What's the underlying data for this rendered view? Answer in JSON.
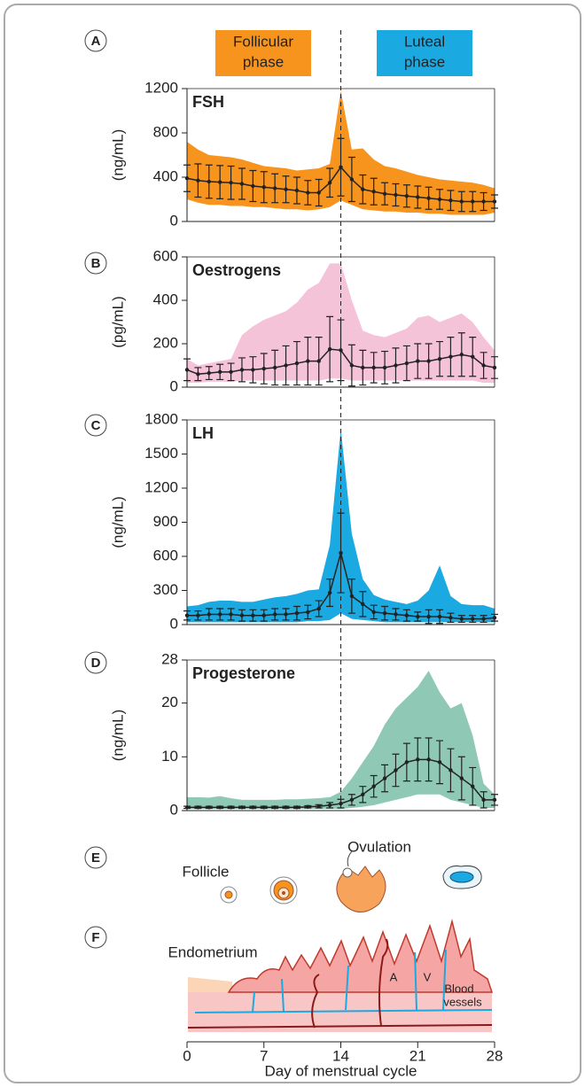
{
  "phases": [
    {
      "lines": [
        "Follicular",
        "phase"
      ],
      "color": "#f7941d"
    },
    {
      "lines": [
        "Luteal",
        "phase"
      ],
      "color": "#1ba9e1"
    }
  ],
  "ovulation_day": 14,
  "chart_data": [
    {
      "type": "line",
      "panel": "A",
      "title": "FSH",
      "y_label": "(ng/mL)",
      "color": "#f7941d",
      "xlim": [
        0,
        28
      ],
      "ylim": [
        0,
        1200
      ],
      "yticks": [
        0,
        400,
        800,
        1200
      ],
      "x": [
        0,
        1,
        2,
        3,
        4,
        5,
        6,
        7,
        8,
        9,
        10,
        11,
        12,
        13,
        14,
        15,
        16,
        17,
        18,
        19,
        20,
        21,
        22,
        23,
        24,
        25,
        26,
        27,
        28
      ],
      "values": [
        390,
        370,
        360,
        355,
        350,
        340,
        320,
        310,
        300,
        290,
        280,
        260,
        260,
        350,
        490,
        380,
        290,
        270,
        250,
        240,
        230,
        220,
        210,
        200,
        190,
        180,
        180,
        180,
        180
      ],
      "errors": [
        120,
        150,
        150,
        150,
        150,
        140,
        140,
        140,
        130,
        120,
        120,
        110,
        120,
        130,
        260,
        200,
        130,
        120,
        100,
        100,
        100,
        100,
        100,
        90,
        90,
        90,
        90,
        80,
        60
      ],
      "range_low": [
        200,
        170,
        150,
        150,
        140,
        140,
        130,
        130,
        120,
        110,
        110,
        100,
        110,
        130,
        190,
        150,
        110,
        100,
        90,
        90,
        80,
        80,
        70,
        70,
        60,
        60,
        60,
        60,
        80
      ],
      "range_high": [
        720,
        650,
        600,
        590,
        580,
        560,
        530,
        500,
        490,
        480,
        460,
        470,
        480,
        520,
        1180,
        650,
        660,
        560,
        500,
        480,
        450,
        420,
        400,
        380,
        370,
        360,
        350,
        330,
        300
      ]
    },
    {
      "type": "line",
      "panel": "B",
      "title": "Oestrogens",
      "y_label": "(pg/mL)",
      "color": "#f5c3d8",
      "xlim": [
        0,
        28
      ],
      "ylim": [
        0,
        600
      ],
      "yticks": [
        0,
        200,
        400,
        600
      ],
      "x": [
        0,
        1,
        2,
        3,
        4,
        5,
        6,
        7,
        8,
        9,
        10,
        11,
        12,
        13,
        14,
        15,
        16,
        17,
        18,
        19,
        20,
        21,
        22,
        23,
        24,
        25,
        26,
        27,
        28
      ],
      "values": [
        80,
        60,
        65,
        70,
        70,
        80,
        80,
        85,
        90,
        100,
        110,
        120,
        120,
        175,
        170,
        100,
        90,
        90,
        90,
        100,
        110,
        120,
        120,
        130,
        140,
        150,
        140,
        100,
        90
      ],
      "errors": [
        50,
        30,
        30,
        35,
        40,
        55,
        60,
        70,
        80,
        90,
        100,
        110,
        110,
        150,
        140,
        95,
        80,
        70,
        75,
        80,
        80,
        80,
        80,
        80,
        90,
        100,
        90,
        60,
        50
      ],
      "range_low": [
        20,
        20,
        25,
        25,
        25,
        30,
        30,
        30,
        30,
        30,
        30,
        30,
        30,
        40,
        40,
        30,
        30,
        30,
        30,
        30,
        30,
        30,
        30,
        30,
        30,
        30,
        30,
        20,
        20
      ],
      "range_high": [
        130,
        100,
        110,
        120,
        130,
        240,
        280,
        310,
        330,
        350,
        390,
        450,
        480,
        570,
        570,
        400,
        260,
        240,
        230,
        250,
        270,
        320,
        330,
        300,
        320,
        340,
        300,
        230,
        170
      ]
    },
    {
      "type": "line",
      "panel": "C",
      "title": "LH",
      "y_label": "(ng/mL)",
      "color": "#1ba9e1",
      "xlim": [
        0,
        28
      ],
      "ylim": [
        0,
        1800
      ],
      "yticks": [
        0,
        300,
        600,
        900,
        1200,
        1500,
        1800
      ],
      "x": [
        0,
        1,
        2,
        3,
        4,
        5,
        6,
        7,
        8,
        9,
        10,
        11,
        12,
        13,
        14,
        15,
        16,
        17,
        18,
        19,
        20,
        21,
        22,
        23,
        24,
        25,
        26,
        27,
        28
      ],
      "values": [
        80,
        80,
        90,
        90,
        90,
        80,
        80,
        80,
        90,
        90,
        100,
        110,
        140,
        280,
        630,
        250,
        180,
        110,
        100,
        90,
        80,
        70,
        70,
        70,
        60,
        50,
        50,
        50,
        60
      ],
      "errors": [
        40,
        40,
        50,
        50,
        50,
        50,
        50,
        50,
        50,
        50,
        60,
        60,
        70,
        120,
        350,
        150,
        110,
        60,
        60,
        50,
        50,
        40,
        60,
        60,
        40,
        30,
        30,
        30,
        30
      ],
      "range_low": [
        20,
        20,
        20,
        20,
        20,
        20,
        20,
        20,
        20,
        20,
        20,
        30,
        30,
        40,
        100,
        50,
        40,
        30,
        20,
        20,
        20,
        20,
        20,
        20,
        20,
        20,
        20,
        20,
        20
      ],
      "range_high": [
        160,
        170,
        200,
        210,
        210,
        200,
        200,
        220,
        240,
        250,
        270,
        300,
        310,
        700,
        1720,
        800,
        400,
        260,
        220,
        200,
        180,
        210,
        300,
        520,
        250,
        180,
        170,
        170,
        140
      ]
    },
    {
      "type": "line",
      "panel": "D",
      "title": "Progesterone",
      "y_label": "(ng/mL)",
      "color": "#8fc9b5",
      "xlim": [
        0,
        28
      ],
      "ylim": [
        0,
        28
      ],
      "yticks": [
        0,
        10,
        20,
        28
      ],
      "x": [
        0,
        1,
        2,
        3,
        4,
        5,
        6,
        7,
        8,
        9,
        10,
        11,
        12,
        13,
        14,
        15,
        16,
        17,
        18,
        19,
        20,
        21,
        22,
        23,
        24,
        25,
        26,
        27,
        28
      ],
      "values": [
        0.6,
        0.6,
        0.6,
        0.6,
        0.6,
        0.6,
        0.6,
        0.6,
        0.6,
        0.6,
        0.6,
        0.7,
        0.8,
        1,
        1.3,
        2,
        3,
        4.5,
        6,
        7.5,
        9,
        9.5,
        9.5,
        9,
        7.5,
        6,
        4.5,
        2,
        2
      ],
      "errors": [
        0.2,
        0.2,
        0.2,
        0.2,
        0.2,
        0.2,
        0.2,
        0.2,
        0.2,
        0.2,
        0.2,
        0.2,
        0.3,
        0.5,
        0.8,
        1,
        1.5,
        2,
        2.5,
        3,
        3.5,
        4,
        4,
        4,
        4,
        4,
        3.5,
        1.5,
        1
      ],
      "range_low": [
        0.3,
        0.3,
        0.3,
        0.3,
        0.3,
        0.3,
        0.3,
        0.3,
        0.3,
        0.3,
        0.3,
        0.3,
        0.3,
        0.3,
        0.3,
        0.5,
        0.7,
        1,
        1.5,
        2,
        2.5,
        3,
        3,
        3,
        2,
        1.5,
        1,
        0.5,
        0.5
      ],
      "range_high": [
        2.5,
        2.5,
        2.4,
        2.7,
        2.3,
        2,
        2,
        2,
        2,
        2.1,
        2.1,
        2.2,
        2.3,
        2.5,
        3.5,
        6,
        9,
        12,
        16,
        19,
        21,
        23,
        26,
        22,
        19,
        20,
        14,
        5,
        3
      ]
    }
  ],
  "illustrations": {
    "follicle_panel": "E",
    "follicle_label": "Follicle",
    "ovulation_label": "Ovulation",
    "endometrium_panel": "F",
    "endometrium_label": "Endometrium",
    "artery_label": "A",
    "vein_label": "V",
    "vessels_label": [
      "Blood",
      "vessels"
    ]
  },
  "day_axis": {
    "label": "Day of menstrual cycle",
    "xlim": [
      0,
      28
    ],
    "xticks": [
      0,
      7,
      14,
      21,
      28
    ]
  }
}
